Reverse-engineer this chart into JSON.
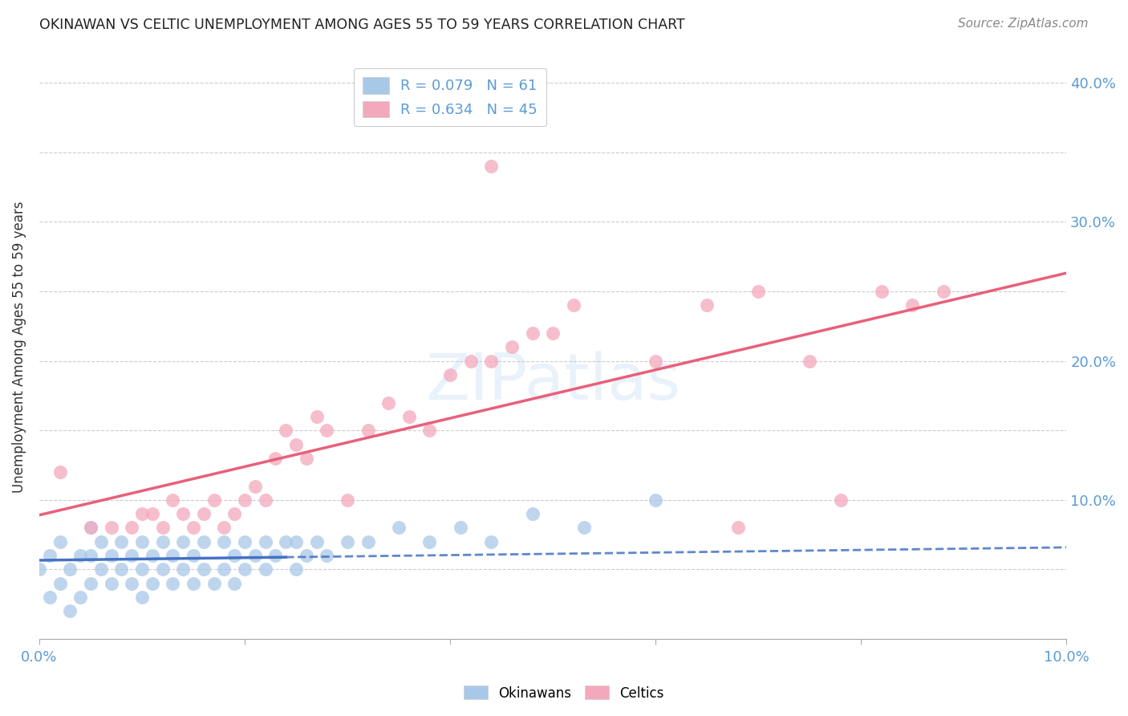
{
  "title": "OKINAWAN VS CELTIC UNEMPLOYMENT AMONG AGES 55 TO 59 YEARS CORRELATION CHART",
  "source": "Source: ZipAtlas.com",
  "ylabel": "Unemployment Among Ages 55 to 59 years",
  "xlim": [
    0.0,
    0.1
  ],
  "ylim": [
    0.0,
    0.42
  ],
  "okinawan_color": "#a8c8e8",
  "celtic_color": "#f4a8bc",
  "okinawan_line_color": "#4472c4",
  "celtic_line_color": "#e8607a",
  "R_okinawan": 0.079,
  "N_okinawan": 61,
  "R_celtic": 0.634,
  "N_celtic": 45,
  "watermark": "ZIPatlas",
  "ok_x": [
    0.0,
    0.001,
    0.001,
    0.002,
    0.002,
    0.003,
    0.003,
    0.004,
    0.004,
    0.005,
    0.005,
    0.005,
    0.006,
    0.006,
    0.007,
    0.007,
    0.008,
    0.008,
    0.009,
    0.009,
    0.01,
    0.01,
    0.01,
    0.011,
    0.011,
    0.012,
    0.012,
    0.013,
    0.013,
    0.014,
    0.014,
    0.015,
    0.015,
    0.016,
    0.016,
    0.017,
    0.018,
    0.018,
    0.019,
    0.019,
    0.02,
    0.02,
    0.021,
    0.022,
    0.022,
    0.023,
    0.024,
    0.025,
    0.025,
    0.026,
    0.027,
    0.028,
    0.03,
    0.032,
    0.035,
    0.038,
    0.041,
    0.044,
    0.048,
    0.053,
    0.06
  ],
  "ok_y": [
    0.05,
    0.03,
    0.06,
    0.04,
    0.07,
    0.02,
    0.05,
    0.03,
    0.06,
    0.04,
    0.06,
    0.08,
    0.05,
    0.07,
    0.04,
    0.06,
    0.05,
    0.07,
    0.04,
    0.06,
    0.03,
    0.05,
    0.07,
    0.04,
    0.06,
    0.05,
    0.07,
    0.04,
    0.06,
    0.05,
    0.07,
    0.04,
    0.06,
    0.05,
    0.07,
    0.04,
    0.05,
    0.07,
    0.04,
    0.06,
    0.05,
    0.07,
    0.06,
    0.05,
    0.07,
    0.06,
    0.07,
    0.05,
    0.07,
    0.06,
    0.07,
    0.06,
    0.07,
    0.07,
    0.08,
    0.07,
    0.08,
    0.07,
    0.09,
    0.08,
    0.1
  ],
  "cel_x": [
    0.002,
    0.005,
    0.007,
    0.009,
    0.01,
    0.011,
    0.012,
    0.013,
    0.014,
    0.015,
    0.016,
    0.017,
    0.018,
    0.019,
    0.02,
    0.021,
    0.022,
    0.023,
    0.024,
    0.025,
    0.026,
    0.027,
    0.028,
    0.03,
    0.032,
    0.034,
    0.036,
    0.038,
    0.04,
    0.042,
    0.044,
    0.046,
    0.048,
    0.05,
    0.052,
    0.06,
    0.065,
    0.068,
    0.07,
    0.075,
    0.078,
    0.082,
    0.085,
    0.088,
    0.044
  ],
  "cel_y": [
    0.12,
    0.08,
    0.08,
    0.08,
    0.09,
    0.09,
    0.08,
    0.1,
    0.09,
    0.08,
    0.09,
    0.1,
    0.08,
    0.09,
    0.1,
    0.11,
    0.1,
    0.13,
    0.15,
    0.14,
    0.13,
    0.16,
    0.15,
    0.1,
    0.15,
    0.17,
    0.16,
    0.15,
    0.19,
    0.2,
    0.2,
    0.21,
    0.22,
    0.22,
    0.24,
    0.2,
    0.24,
    0.08,
    0.25,
    0.2,
    0.1,
    0.25,
    0.24,
    0.25,
    0.34
  ]
}
